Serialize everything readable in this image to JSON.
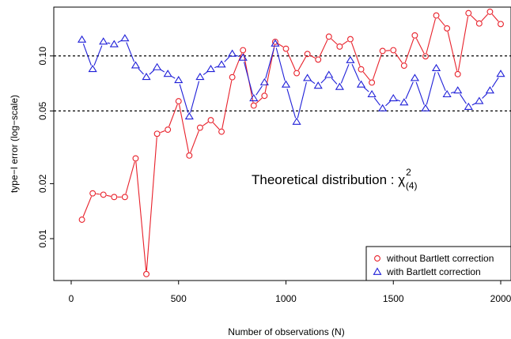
{
  "chart_data": {
    "type": "line",
    "xlabel": "Number of observations (N)",
    "ylabel": "type−I error (log−scale)",
    "y_scale": "log",
    "xlim": [
      0,
      2000
    ],
    "ylim": [
      0.0059,
      0.185
    ],
    "xticks": [
      0,
      500,
      1000,
      1500,
      2000
    ],
    "xtick_labels": [
      "0",
      "500",
      "1000",
      "1500",
      "2000"
    ],
    "yticks": [
      0.01,
      0.02,
      0.05,
      0.1
    ],
    "ytick_labels": [
      "0.01",
      "0.02",
      "0.05",
      "0.10"
    ],
    "reference_lines": [
      0.05,
      0.1
    ],
    "annotation": {
      "text": "Theoretical distribution : χ",
      "superscript": "2",
      "subscript": "(4)"
    },
    "legend": {
      "position": "bottom-right",
      "entries": [
        "without Bartlett correction",
        "with Bartlett correction"
      ]
    },
    "colors": {
      "without": "#e8202a",
      "with": "#1f1fd8"
    },
    "x": [
      50,
      100,
      150,
      200,
      250,
      300,
      350,
      400,
      450,
      500,
      550,
      600,
      650,
      700,
      750,
      800,
      850,
      900,
      950,
      1000,
      1050,
      1100,
      1150,
      1200,
      1250,
      1300,
      1350,
      1400,
      1450,
      1500,
      1550,
      1600,
      1650,
      1700,
      1750,
      1800,
      1850,
      1900,
      1950,
      2000
    ],
    "series": [
      {
        "name": "without Bartlett correction",
        "marker": "circle",
        "values": [
          0.0127,
          0.0177,
          0.0174,
          0.0169,
          0.0169,
          0.0275,
          0.0064,
          0.0375,
          0.0395,
          0.0565,
          0.0285,
          0.0405,
          0.0445,
          0.0385,
          0.0765,
          0.1075,
          0.0535,
          0.0605,
          0.1195,
          0.1095,
          0.0805,
          0.1025,
          0.0955,
          0.1275,
          0.1125,
          0.1235,
          0.0845,
          0.0715,
          0.1065,
          0.1075,
          0.0885,
          0.1295,
          0.0995,
          0.1665,
          0.1415,
          0.0795,
          0.1715,
          0.1505,
          0.1745,
          0.1495
        ]
      },
      {
        "name": "with Bartlett correction",
        "marker": "triangle",
        "values": [
          0.1225,
          0.0845,
          0.1195,
          0.1155,
          0.1245,
          0.0885,
          0.0765,
          0.0865,
          0.0795,
          0.0735,
          0.0465,
          0.0765,
          0.0845,
          0.0895,
          0.1025,
          0.0975,
          0.0585,
          0.0715,
          0.1165,
          0.0695,
          0.0435,
          0.0755,
          0.0685,
          0.0785,
          0.0675,
          0.0945,
          0.0695,
          0.0615,
          0.0515,
          0.0585,
          0.0555,
          0.0755,
          0.0515,
          0.0855,
          0.0615,
          0.0645,
          0.0525,
          0.0565,
          0.0645,
          0.0795
        ]
      }
    ]
  }
}
